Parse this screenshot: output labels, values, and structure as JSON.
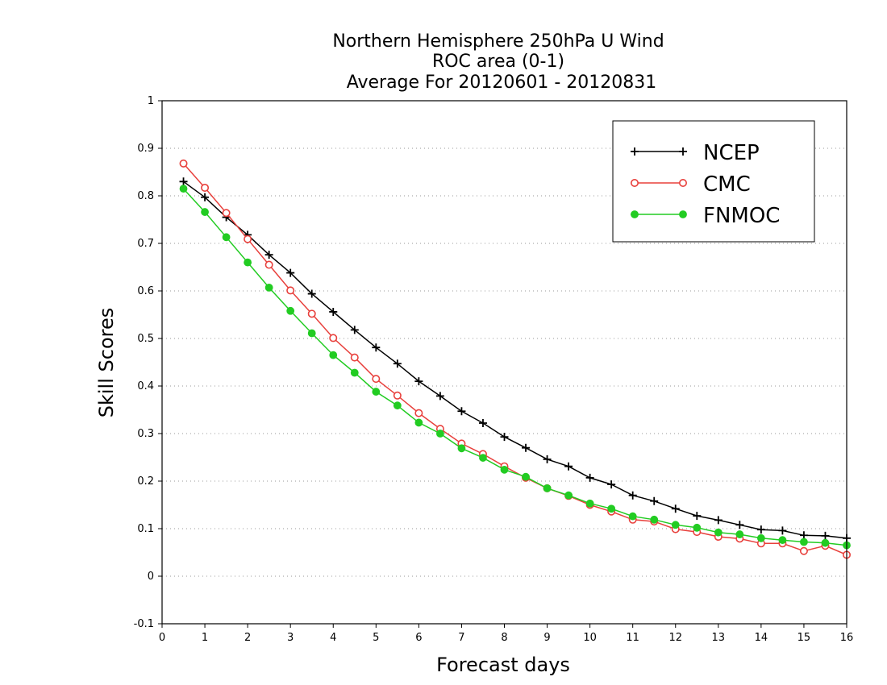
{
  "chart_data": {
    "type": "line",
    "title": "Northern Hemisphere 250hPa U Wind",
    "subtitle_lines": [
      "ROC area (0-1)",
      "Average For 20120601 - 20120831"
    ],
    "xlabel": "Forecast days",
    "ylabel": "Skill Scores",
    "xlim": [
      0,
      16
    ],
    "ylim": [
      -0.1,
      1
    ],
    "xticks": [
      0,
      1,
      2,
      3,
      4,
      5,
      6,
      7,
      8,
      9,
      10,
      11,
      12,
      13,
      14,
      15,
      16
    ],
    "xtick_labels": [
      "0",
      "1",
      "2",
      "3",
      "4",
      "5",
      "6",
      "7",
      "8",
      "9",
      "10",
      "11",
      "12",
      "13",
      "14",
      "15",
      "16"
    ],
    "yticks": [
      -0.1,
      0,
      0.1,
      0.2,
      0.3,
      0.4,
      0.5,
      0.6,
      0.7,
      0.8,
      0.9,
      1
    ],
    "ytick_labels": [
      "-0.1",
      "0",
      "0.1",
      "0.2",
      "0.3",
      "0.4",
      "0.5",
      "0.6",
      "0.7",
      "0.8",
      "0.9",
      "1"
    ],
    "grid": "horizontal dotted",
    "legend_position": "top-right",
    "x": [
      0.5,
      1,
      1.5,
      2,
      2.5,
      3,
      3.5,
      4,
      4.5,
      5,
      5.5,
      6,
      6.5,
      7,
      7.5,
      8,
      8.5,
      9,
      9.5,
      10,
      10.5,
      11,
      11.5,
      12,
      12.5,
      13,
      13.5,
      14,
      14.5,
      15,
      15.5,
      16
    ],
    "series": [
      {
        "name": "NCEP",
        "color": "#000000",
        "marker": "plus",
        "values": [
          0.83,
          0.797,
          0.755,
          0.718,
          0.676,
          0.638,
          0.594,
          0.556,
          0.518,
          0.481,
          0.447,
          0.41,
          0.379,
          0.347,
          0.322,
          0.293,
          0.27,
          0.246,
          0.231,
          0.207,
          0.193,
          0.17,
          0.158,
          0.142,
          0.127,
          0.118,
          0.108,
          0.098,
          0.096,
          0.086,
          0.085,
          0.08
        ]
      },
      {
        "name": "CMC",
        "color": "#e8403c",
        "marker": "open-circle",
        "values": [
          0.868,
          0.817,
          0.764,
          0.709,
          0.655,
          0.601,
          0.552,
          0.501,
          0.46,
          0.415,
          0.38,
          0.343,
          0.31,
          0.279,
          0.257,
          0.231,
          0.207,
          0.185,
          0.169,
          0.15,
          0.136,
          0.119,
          0.115,
          0.099,
          0.093,
          0.083,
          0.079,
          0.069,
          0.069,
          0.053,
          0.064,
          0.045
        ]
      },
      {
        "name": "FNMOC",
        "color": "#22cc22",
        "marker": "filled-circle",
        "values": [
          0.815,
          0.766,
          0.713,
          0.66,
          0.607,
          0.558,
          0.511,
          0.465,
          0.428,
          0.388,
          0.359,
          0.323,
          0.3,
          0.269,
          0.249,
          0.224,
          0.209,
          0.185,
          0.17,
          0.153,
          0.142,
          0.126,
          0.119,
          0.108,
          0.102,
          0.092,
          0.088,
          0.08,
          0.076,
          0.072,
          0.07,
          0.065
        ]
      }
    ]
  }
}
